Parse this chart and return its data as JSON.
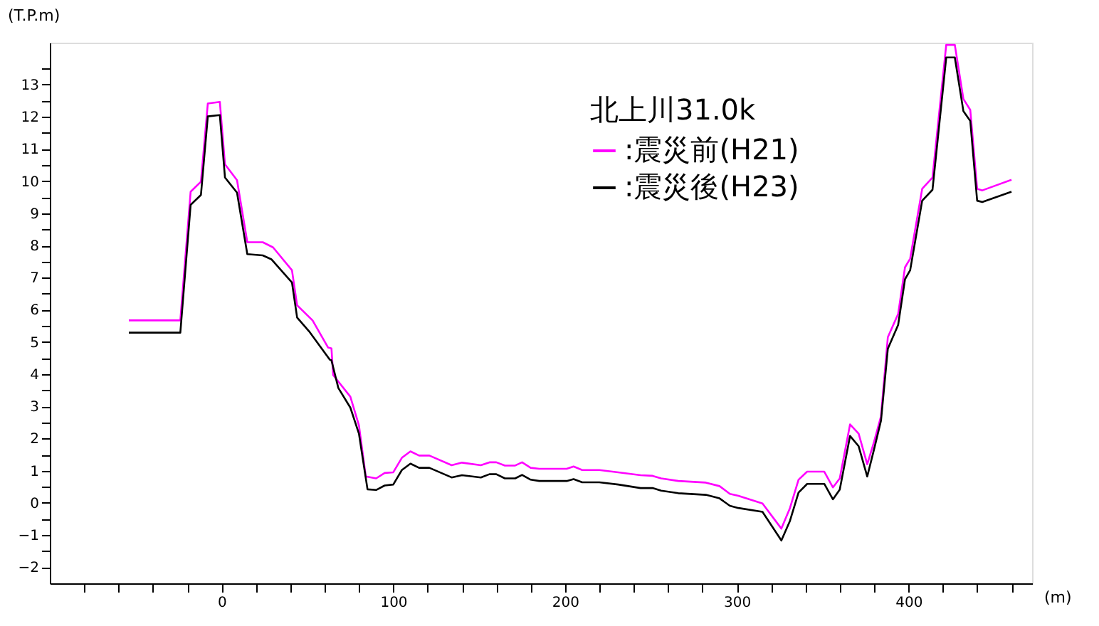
{
  "chart_data": {
    "type": "line",
    "xlabel": "(m)",
    "ylabel": "(T.P.m)",
    "legend_title": "北上川31.0k",
    "legend": "top right",
    "grid": false,
    "marker": "none",
    "line_style": "solid",
    "xlim": [
      -100,
      472
    ],
    "ylim": [
      -2.5,
      14.3
    ],
    "xticks": [
      {
        "value": -80,
        "label": null
      },
      {
        "value": -60,
        "label": null
      },
      {
        "value": -40,
        "label": null
      },
      {
        "value": -20,
        "label": null
      },
      0,
      {
        "value": 20,
        "label": null
      },
      {
        "value": 40,
        "label": null
      },
      {
        "value": 60,
        "label": null
      },
      {
        "value": 80,
        "label": null
      },
      100,
      {
        "value": 120,
        "label": null
      },
      {
        "value": 140,
        "label": null
      },
      {
        "value": 160,
        "label": null
      },
      {
        "value": 180,
        "label": null
      },
      200,
      {
        "value": 220,
        "label": null
      },
      {
        "value": 240,
        "label": null
      },
      {
        "value": 260,
        "label": null
      },
      {
        "value": 280,
        "label": null
      },
      300,
      {
        "value": 320,
        "label": null
      },
      {
        "value": 340,
        "label": null
      },
      {
        "value": 360,
        "label": null
      },
      {
        "value": 380,
        "label": null
      },
      400,
      {
        "value": 420,
        "label": null
      },
      {
        "value": 440,
        "label": null
      },
      {
        "value": 460,
        "label": null
      }
    ],
    "yticks": [
      -2,
      {
        "value": -1.5,
        "label": null
      },
      -1,
      {
        "value": -0.5,
        "label": null
      },
      0,
      {
        "value": 0.5,
        "label": null
      },
      1,
      {
        "value": 1.5,
        "label": null
      },
      2,
      {
        "value": 2.5,
        "label": null
      },
      3,
      {
        "value": 3.5,
        "label": null
      },
      4,
      {
        "value": 4.5,
        "label": null
      },
      5,
      {
        "value": 5.5,
        "label": null
      },
      6,
      {
        "value": 6.5,
        "label": null
      },
      7,
      {
        "value": 7.5,
        "label": null
      },
      8,
      {
        "value": 8.5,
        "label": null
      },
      9,
      {
        "value": 9.5,
        "label": null
      },
      10,
      {
        "value": 10.5,
        "label": null
      },
      11,
      {
        "value": 11.5,
        "label": null
      },
      12,
      {
        "value": 12.5,
        "label": null
      },
      13,
      {
        "value": 13.5,
        "label": null
      }
    ],
    "series": [
      {
        "name": ":震災前(H21)",
        "color": "#ff00ff",
        "x": [
          -54,
          -24,
          -18,
          -12,
          -8,
          -1,
          2,
          9,
          15,
          24,
          30,
          41,
          44,
          53,
          62,
          64,
          65,
          75,
          80,
          84,
          90,
          95,
          100,
          105,
          110,
          115,
          121,
          134,
          140,
          151,
          156,
          160,
          165,
          171,
          175,
          180,
          185,
          201,
          205,
          210,
          220,
          231,
          244,
          251,
          256,
          266,
          282,
          290,
          296,
          301,
          315,
          326,
          331,
          336,
          341,
          351,
          356,
          360,
          366,
          371,
          376,
          380,
          384,
          388,
          394,
          398,
          401,
          408,
          414,
          422,
          427,
          432,
          436,
          440,
          443,
          460
        ],
        "values": [
          5.67,
          5.67,
          9.67,
          9.98,
          12.41,
          12.46,
          10.52,
          10.03,
          8.1,
          8.1,
          7.94,
          7.23,
          6.14,
          5.67,
          4.83,
          4.8,
          3.97,
          3.3,
          2.41,
          0.82,
          0.76,
          0.93,
          0.95,
          1.4,
          1.6,
          1.47,
          1.47,
          1.17,
          1.25,
          1.17,
          1.26,
          1.26,
          1.16,
          1.16,
          1.26,
          1.09,
          1.06,
          1.06,
          1.13,
          1.02,
          1.02,
          0.95,
          0.86,
          0.84,
          0.76,
          0.68,
          0.63,
          0.52,
          0.28,
          0.22,
          -0.02,
          -0.8,
          -0.16,
          0.72,
          0.97,
          0.97,
          0.48,
          0.76,
          2.44,
          2.15,
          1.2,
          1.9,
          2.69,
          5.15,
          5.87,
          7.32,
          7.59,
          9.76,
          10.11,
          14.23,
          14.23,
          12.55,
          12.21,
          9.76,
          9.71,
          10.04
        ]
      },
      {
        "name": ":震災後(H23)",
        "color": "#000000",
        "x": [
          -54,
          -24,
          -18,
          -12,
          -8,
          -1,
          2,
          9,
          15,
          24,
          29,
          41,
          44,
          51,
          63,
          64,
          68,
          75,
          80,
          85,
          90,
          95,
          100,
          105,
          110,
          115,
          121,
          134,
          140,
          151,
          156,
          160,
          165,
          171,
          175,
          180,
          185,
          201,
          205,
          210,
          220,
          231,
          244,
          251,
          256,
          266,
          282,
          290,
          296,
          301,
          315,
          326,
          331,
          336,
          341,
          351,
          356,
          360,
          366,
          371,
          376,
          380,
          384,
          388,
          394,
          398,
          401,
          408,
          414,
          422,
          427,
          432,
          436,
          440,
          443,
          460
        ],
        "values": [
          5.29,
          5.29,
          9.26,
          9.57,
          12.01,
          12.05,
          10.11,
          9.64,
          7.73,
          7.69,
          7.57,
          6.85,
          5.76,
          5.33,
          4.45,
          4.43,
          3.57,
          2.96,
          2.15,
          0.42,
          0.4,
          0.54,
          0.57,
          1.02,
          1.22,
          1.09,
          1.09,
          0.79,
          0.86,
          0.79,
          0.89,
          0.89,
          0.76,
          0.76,
          0.87,
          0.72,
          0.68,
          0.68,
          0.74,
          0.64,
          0.64,
          0.57,
          0.46,
          0.46,
          0.38,
          0.3,
          0.25,
          0.14,
          -0.09,
          -0.16,
          -0.28,
          -1.17,
          -0.56,
          0.32,
          0.59,
          0.59,
          0.11,
          0.41,
          2.08,
          1.76,
          0.82,
          1.67,
          2.55,
          4.79,
          5.53,
          6.95,
          7.23,
          9.39,
          9.73,
          13.84,
          13.84,
          12.17,
          11.87,
          9.39,
          9.35,
          9.67
        ]
      }
    ]
  }
}
